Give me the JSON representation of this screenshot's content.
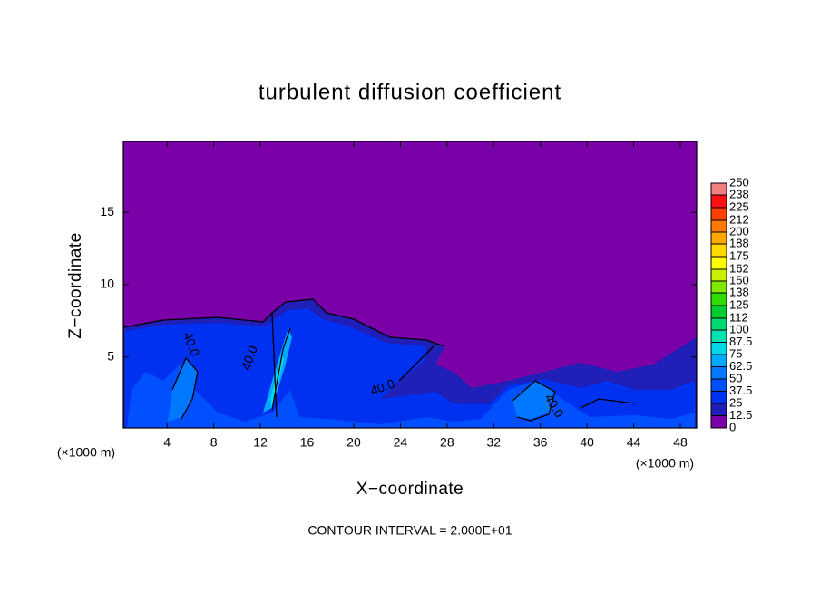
{
  "chart_data": {
    "type": "contour",
    "title": "turbulent diffusion coefficient",
    "x_label": "X−coordinate",
    "y_label": "Z−coordinate",
    "x_unit_label": "(×1000 m)",
    "footnote": "CONTOUR INTERVAL = 2.000E+01",
    "xlim": [
      0.25,
      49.4
    ],
    "ylim": [
      0.1,
      19.9
    ],
    "xticks": [
      4,
      8,
      12,
      16,
      20,
      24,
      28,
      32,
      36,
      40,
      44,
      48
    ],
    "yticks": [
      5,
      10,
      15
    ],
    "contour_labels": [
      "40.0",
      "40.0",
      "40.0",
      "40.0"
    ],
    "colorbar": {
      "levels": [
        0,
        12.5,
        25,
        37.5,
        50,
        62.5,
        75,
        87.5,
        100,
        112,
        125,
        138,
        150,
        162,
        175,
        188,
        200,
        212,
        225,
        238,
        250
      ],
      "colors": [
        "#7a00a8",
        "#2020b8",
        "#0030f0",
        "#0050ff",
        "#0078ff",
        "#00a8ff",
        "#00d8e8",
        "#00e0b0",
        "#00d870",
        "#00cc30",
        "#30dc00",
        "#80e800",
        "#c8f000",
        "#ffff00",
        "#ffd800",
        "#ffa800",
        "#ff7800",
        "#ff4000",
        "#ff1010",
        "#f08080"
      ]
    }
  }
}
